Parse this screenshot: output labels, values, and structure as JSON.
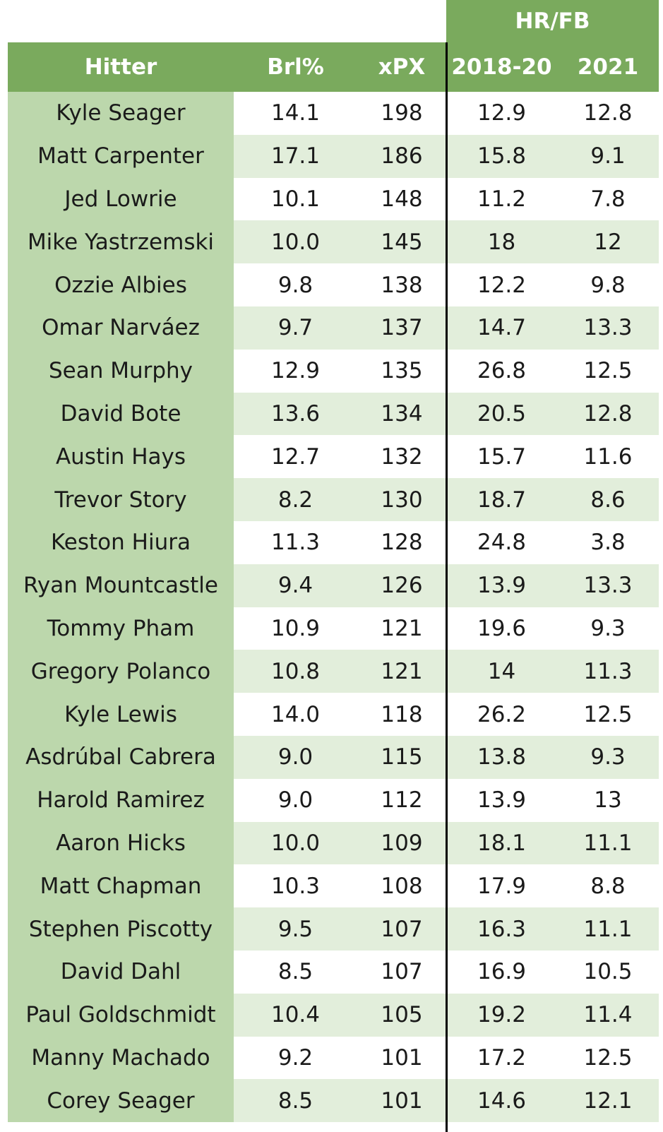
{
  "chart_data": {
    "type": "table",
    "group_header": "HR/FB",
    "columns": [
      "Hitter",
      "Brl%",
      "xPX",
      "2018-20",
      "2021"
    ],
    "rows": [
      [
        "Kyle Seager",
        "14.1",
        "198",
        "12.9",
        "12.8"
      ],
      [
        "Matt Carpenter",
        "17.1",
        "186",
        "15.8",
        "9.1"
      ],
      [
        "Jed Lowrie",
        "10.1",
        "148",
        "11.2",
        "7.8"
      ],
      [
        "Mike Yastrzemski",
        "10.0",
        "145",
        "18",
        "12"
      ],
      [
        "Ozzie Albies",
        "9.8",
        "138",
        "12.2",
        "9.8"
      ],
      [
        "Omar Narváez",
        "9.7",
        "137",
        "14.7",
        "13.3"
      ],
      [
        "Sean Murphy",
        "12.9",
        "135",
        "26.8",
        "12.5"
      ],
      [
        "David Bote",
        "13.6",
        "134",
        "20.5",
        "12.8"
      ],
      [
        "Austin Hays",
        "12.7",
        "132",
        "15.7",
        "11.6"
      ],
      [
        "Trevor Story",
        "8.2",
        "130",
        "18.7",
        "8.6"
      ],
      [
        "Keston Hiura",
        "11.3",
        "128",
        "24.8",
        "3.8"
      ],
      [
        "Ryan Mountcastle",
        "9.4",
        "126",
        "13.9",
        "13.3"
      ],
      [
        "Tommy Pham",
        "10.9",
        "121",
        "19.6",
        "9.3"
      ],
      [
        "Gregory Polanco",
        "10.8",
        "121",
        "14",
        "11.3"
      ],
      [
        "Kyle Lewis",
        "14.0",
        "118",
        "26.2",
        "12.5"
      ],
      [
        "Asdrúbal Cabrera",
        "9.0",
        "115",
        "13.8",
        "9.3"
      ],
      [
        "Harold Ramirez",
        "9.0",
        "112",
        "13.9",
        "13"
      ],
      [
        "Aaron Hicks",
        "10.0",
        "109",
        "18.1",
        "11.1"
      ],
      [
        "Matt Chapman",
        "10.3",
        "108",
        "17.9",
        "8.8"
      ],
      [
        "Stephen Piscotty",
        "9.5",
        "107",
        "16.3",
        "11.1"
      ],
      [
        "David Dahl",
        "8.5",
        "107",
        "16.9",
        "10.5"
      ],
      [
        "Paul Goldschmidt",
        "10.4",
        "105",
        "19.2",
        "11.4"
      ],
      [
        "Manny Machado",
        "9.2",
        "101",
        "17.2",
        "12.5"
      ],
      [
        "Corey Seager",
        "8.5",
        "101",
        "14.6",
        "12.1"
      ]
    ]
  },
  "colors": {
    "header_bg": "#7aaa5d",
    "name_col_bg": "#bcd7ac",
    "alt_row_bg": "#e2eedb"
  }
}
